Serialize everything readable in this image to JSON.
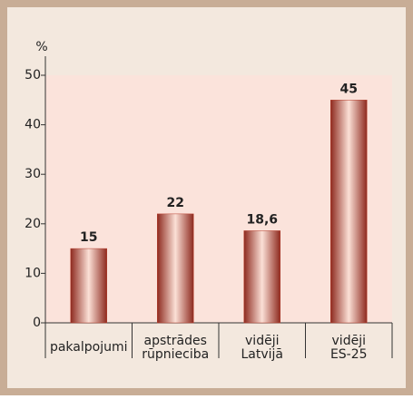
{
  "chart_data": {
    "type": "bar",
    "y_label": "%",
    "categories": [
      [
        "pakalpojumi"
      ],
      [
        "apstrādes",
        "rūpnieciba"
      ],
      [
        "vidēji",
        "Latvijā"
      ],
      [
        "vidēji",
        "ES-25"
      ]
    ],
    "values": [
      15,
      22,
      18.6,
      45
    ],
    "value_labels": [
      "15",
      "22",
      "18,6",
      "45"
    ],
    "color": "#b8402f",
    "ylim": [
      0,
      50
    ],
    "yticks": [
      0,
      10,
      20,
      30,
      40,
      50
    ]
  }
}
